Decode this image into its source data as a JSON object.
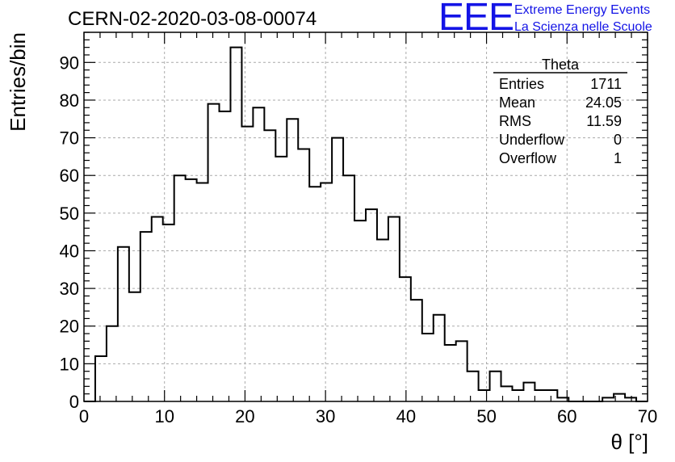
{
  "header": {
    "title": "CERN-02-2020-03-08-00074",
    "logo_text": "EEE",
    "logo_line1": "Extreme Energy Events",
    "logo_line2": "La Scienza nelle Scuole"
  },
  "colors": {
    "logo": "#1414e6",
    "line": "#000000",
    "grid": "#aaaaaa"
  },
  "stats": {
    "name": "Theta",
    "rows": [
      {
        "label": "Entries",
        "value": "1711"
      },
      {
        "label": "Mean",
        "value": "24.05"
      },
      {
        "label": "RMS",
        "value": "11.59"
      },
      {
        "label": "Underflow",
        "value": "0"
      },
      {
        "label": "Overflow",
        "value": "1"
      }
    ]
  },
  "chart_data": {
    "type": "histogram",
    "title": "CERN-02-2020-03-08-00074",
    "xlabel": "θ [°]",
    "ylabel": "Entries/bin",
    "xlim": [
      0,
      70
    ],
    "ylim": [
      0,
      98
    ],
    "grid": true,
    "x_ticks": [
      0,
      10,
      20,
      30,
      40,
      50,
      60,
      70
    ],
    "y_ticks": [
      0,
      10,
      20,
      30,
      40,
      50,
      60,
      70,
      80,
      90
    ],
    "bin_width": 1.4,
    "bin_start": 0,
    "values": [
      0,
      12,
      20,
      41,
      29,
      45,
      49,
      47,
      60,
      59,
      58,
      79,
      77,
      94,
      73,
      78,
      72,
      65,
      75,
      67,
      57,
      58,
      70,
      60,
      48,
      51,
      43,
      49,
      33,
      27,
      18,
      23,
      15,
      16,
      8,
      3,
      8,
      4,
      3,
      5,
      3,
      3,
      1,
      0,
      0,
      0,
      1,
      2,
      1,
      0
    ]
  }
}
